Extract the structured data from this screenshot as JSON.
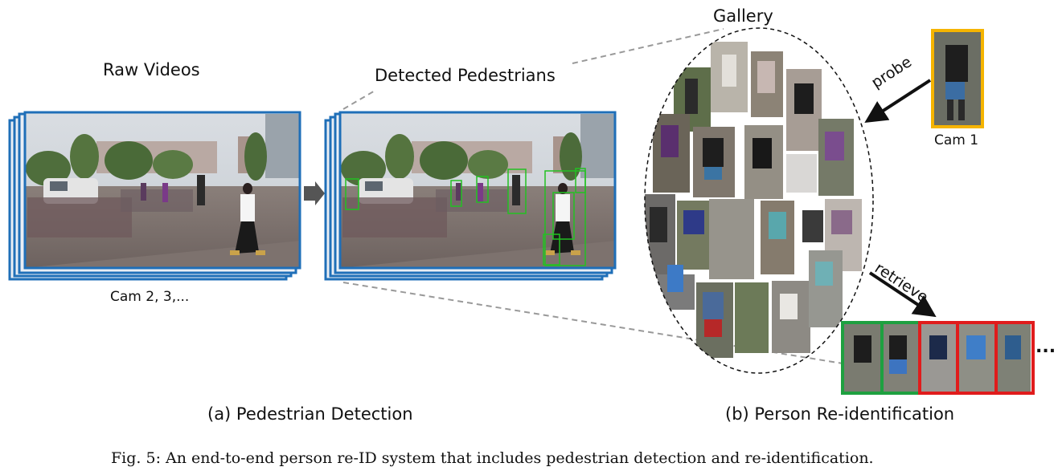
{
  "figure": {
    "labels": {
      "raw_videos": "Raw Videos",
      "cam_others": "Cam 2, 3,...",
      "detected_pedestrians": "Detected Pedestrians",
      "gallery": "Gallery",
      "probe": "probe",
      "cam1": "Cam 1",
      "retrieve": "retrieve",
      "ellipsis": "..."
    },
    "subcaptions": {
      "a": "(a) Pedestrian Detection",
      "b": "(b) Person Re-identification"
    },
    "caption": "Fig. 5: An end-to-end person re-ID system that includes pedestrian detection and re-identification."
  },
  "colors": {
    "frame_blue": "#1f6fb8",
    "detect_green": "#22c122",
    "probe_orange": "#f5b400",
    "match_green": "#1ea040",
    "mismatch_red": "#e01c1c",
    "arrow_gray": "#555555"
  },
  "retrieval_results": [
    "match",
    "match",
    "mismatch",
    "mismatch",
    "mismatch"
  ]
}
